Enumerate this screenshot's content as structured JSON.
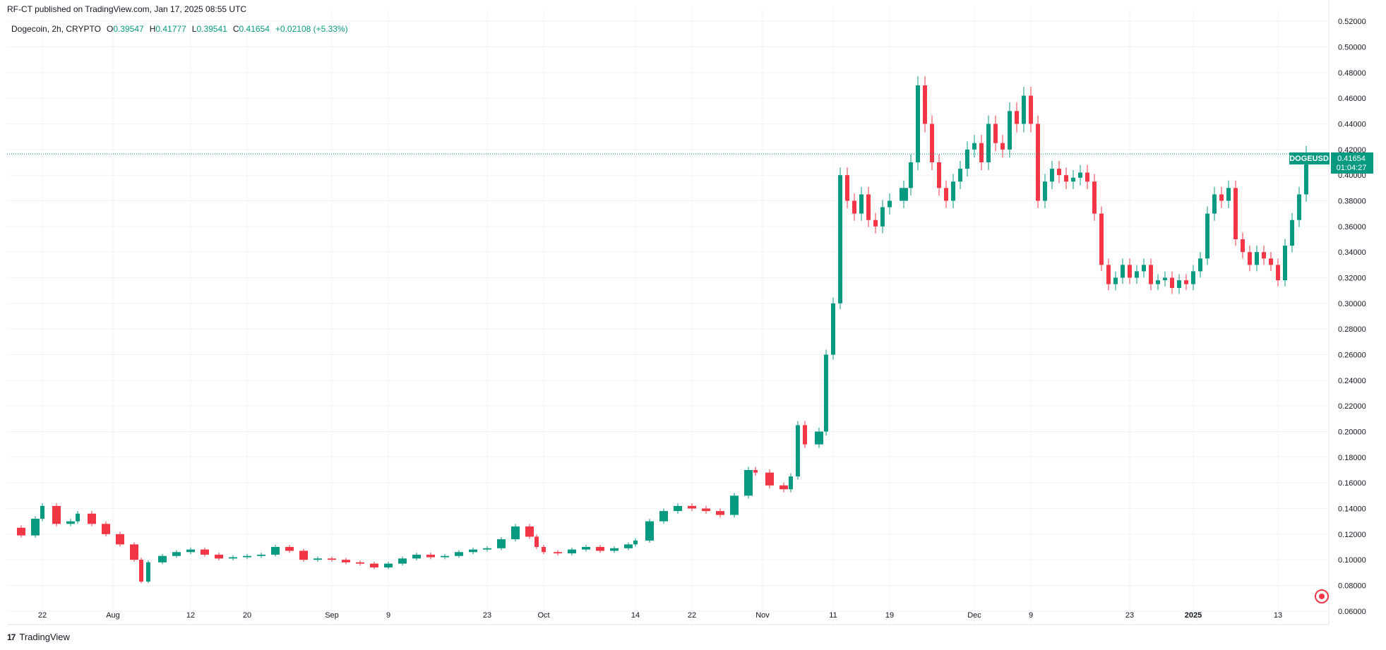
{
  "header": {
    "published_text": "RF-CT published on TradingView.com, Jan 17, 2025 08:55 UTC"
  },
  "legend": {
    "symbol": "Dogecoin, 2h, CRYPTO",
    "open_label": "O",
    "open": "0.39547",
    "high_label": "H",
    "high": "0.41777",
    "low_label": "L",
    "low": "0.39541",
    "close_label": "C",
    "close": "0.41654",
    "change": "+0.02108 (+5.33%)"
  },
  "price_tag": {
    "ticker": "DOGEUSD",
    "price": "0.41654",
    "countdown": "01:04:27"
  },
  "footer": {
    "brand": "TradingView",
    "logo": "17"
  },
  "colors": {
    "up": "#089981",
    "down": "#f23645",
    "grid": "#f0f3fa",
    "text": "#131722"
  },
  "chart_data": {
    "type": "line",
    "style": "candlestick",
    "ylim": [
      0.05,
      0.53
    ],
    "y_ticks": [
      0.06,
      0.08,
      0.1,
      0.12,
      0.14,
      0.16,
      0.18,
      0.2,
      0.22,
      0.24,
      0.26,
      0.28,
      0.3,
      0.32,
      0.34,
      0.36,
      0.38,
      0.4,
      0.42,
      0.44,
      0.46,
      0.48,
      0.5,
      0.52
    ],
    "y_tick_labels": [
      "0.06000",
      "0.08000",
      "0.10000",
      "0.12000",
      "0.14000",
      "0.16000",
      "0.18000",
      "0.20000",
      "0.22000",
      "0.24000",
      "0.26000",
      "0.28000",
      "0.30000",
      "0.32000",
      "0.34000",
      "0.36000",
      "0.38000",
      "0.40000",
      "0.42000",
      "0.44000",
      "0.46000",
      "0.48000",
      "0.50000",
      "0.52000"
    ],
    "xlim": [
      "2024-07-17",
      "2025-01-20"
    ],
    "x_ticks": [
      {
        "date": "2024-07-22",
        "label": "22"
      },
      {
        "date": "2024-08-01",
        "label": "Aug"
      },
      {
        "date": "2024-08-12",
        "label": "12"
      },
      {
        "date": "2024-08-20",
        "label": "20"
      },
      {
        "date": "2024-09-01",
        "label": "Sep"
      },
      {
        "date": "2024-09-09",
        "label": "9"
      },
      {
        "date": "2024-09-23",
        "label": "23"
      },
      {
        "date": "2024-10-01",
        "label": "Oct"
      },
      {
        "date": "2024-10-14",
        "label": "14"
      },
      {
        "date": "2024-10-22",
        "label": "22"
      },
      {
        "date": "2024-11-01",
        "label": "Nov"
      },
      {
        "date": "2024-11-11",
        "label": "11"
      },
      {
        "date": "2024-11-19",
        "label": "19"
      },
      {
        "date": "2024-12-01",
        "label": "Dec"
      },
      {
        "date": "2024-12-09",
        "label": "9"
      },
      {
        "date": "2024-12-23",
        "label": "23"
      },
      {
        "date": "2025-01-01",
        "label": "2025",
        "bold": true
      },
      {
        "date": "2025-01-13",
        "label": "13"
      }
    ],
    "current_price": 0.41654,
    "series": [
      {
        "values": [
          [
            "2024-07-17",
            0.125
          ],
          [
            "2024-07-19",
            0.119
          ],
          [
            "2024-07-21",
            0.132
          ],
          [
            "2024-07-22",
            0.142
          ],
          [
            "2024-07-24",
            0.128
          ],
          [
            "2024-07-26",
            0.13
          ],
          [
            "2024-07-27",
            0.136
          ],
          [
            "2024-07-29",
            0.128
          ],
          [
            "2024-07-31",
            0.12
          ],
          [
            "2024-08-02",
            0.112
          ],
          [
            "2024-08-04",
            0.1
          ],
          [
            "2024-08-05",
            0.083
          ],
          [
            "2024-08-06",
            0.098
          ],
          [
            "2024-08-08",
            0.103
          ],
          [
            "2024-08-10",
            0.106
          ],
          [
            "2024-08-12",
            0.108
          ],
          [
            "2024-08-14",
            0.104
          ],
          [
            "2024-08-16",
            0.101
          ],
          [
            "2024-08-18",
            0.102
          ],
          [
            "2024-08-20",
            0.103
          ],
          [
            "2024-08-22",
            0.104
          ],
          [
            "2024-08-24",
            0.11
          ],
          [
            "2024-08-26",
            0.107
          ],
          [
            "2024-08-28",
            0.1
          ],
          [
            "2024-08-30",
            0.101
          ],
          [
            "2024-09-01",
            0.1
          ],
          [
            "2024-09-03",
            0.098
          ],
          [
            "2024-09-05",
            0.097
          ],
          [
            "2024-09-07",
            0.094
          ],
          [
            "2024-09-09",
            0.097
          ],
          [
            "2024-09-11",
            0.101
          ],
          [
            "2024-09-13",
            0.104
          ],
          [
            "2024-09-15",
            0.102
          ],
          [
            "2024-09-17",
            0.103
          ],
          [
            "2024-09-19",
            0.106
          ],
          [
            "2024-09-21",
            0.108
          ],
          [
            "2024-09-23",
            0.109
          ],
          [
            "2024-09-25",
            0.116
          ],
          [
            "2024-09-27",
            0.126
          ],
          [
            "2024-09-29",
            0.118
          ],
          [
            "2024-09-30",
            0.11
          ],
          [
            "2024-10-01",
            0.106
          ],
          [
            "2024-10-03",
            0.105
          ],
          [
            "2024-10-05",
            0.108
          ],
          [
            "2024-10-07",
            0.11
          ],
          [
            "2024-10-09",
            0.107
          ],
          [
            "2024-10-11",
            0.109
          ],
          [
            "2024-10-13",
            0.112
          ],
          [
            "2024-10-14",
            0.115
          ],
          [
            "2024-10-16",
            0.13
          ],
          [
            "2024-10-18",
            0.138
          ],
          [
            "2024-10-20",
            0.142
          ],
          [
            "2024-10-22",
            0.14
          ],
          [
            "2024-10-24",
            0.138
          ],
          [
            "2024-10-26",
            0.135
          ],
          [
            "2024-10-28",
            0.15
          ],
          [
            "2024-10-30",
            0.17
          ],
          [
            "2024-10-31",
            0.168
          ],
          [
            "2024-11-02",
            0.158
          ],
          [
            "2024-11-04",
            0.155
          ],
          [
            "2024-11-05",
            0.165
          ],
          [
            "2024-11-06",
            0.205
          ],
          [
            "2024-11-07",
            0.19
          ],
          [
            "2024-11-09",
            0.2
          ],
          [
            "2024-11-10",
            0.26
          ],
          [
            "2024-11-11",
            0.3
          ],
          [
            "2024-11-12",
            0.4
          ],
          [
            "2024-11-13",
            0.38
          ],
          [
            "2024-11-14",
            0.37
          ],
          [
            "2024-11-15",
            0.385
          ],
          [
            "2024-11-16",
            0.365
          ],
          [
            "2024-11-17",
            0.36
          ],
          [
            "2024-11-18",
            0.375
          ],
          [
            "2024-11-19",
            0.38
          ],
          [
            "2024-11-21",
            0.39
          ],
          [
            "2024-11-22",
            0.41
          ],
          [
            "2024-11-23",
            0.47
          ],
          [
            "2024-11-24",
            0.44
          ],
          [
            "2024-11-25",
            0.41
          ],
          [
            "2024-11-26",
            0.39
          ],
          [
            "2024-11-27",
            0.38
          ],
          [
            "2024-11-28",
            0.395
          ],
          [
            "2024-11-29",
            0.405
          ],
          [
            "2024-11-30",
            0.42
          ],
          [
            "2024-12-01",
            0.425
          ],
          [
            "2024-12-02",
            0.41
          ],
          [
            "2024-12-03",
            0.44
          ],
          [
            "2024-12-04",
            0.425
          ],
          [
            "2024-12-05",
            0.42
          ],
          [
            "2024-12-06",
            0.45
          ],
          [
            "2024-12-07",
            0.44
          ],
          [
            "2024-12-08",
            0.462
          ],
          [
            "2024-12-09",
            0.44
          ],
          [
            "2024-12-10",
            0.38
          ],
          [
            "2024-12-11",
            0.395
          ],
          [
            "2024-12-12",
            0.405
          ],
          [
            "2024-12-13",
            0.4
          ],
          [
            "2024-12-14",
            0.395
          ],
          [
            "2024-12-15",
            0.398
          ],
          [
            "2024-12-16",
            0.402
          ],
          [
            "2024-12-17",
            0.395
          ],
          [
            "2024-12-18",
            0.37
          ],
          [
            "2024-12-19",
            0.33
          ],
          [
            "2024-12-20",
            0.315
          ],
          [
            "2024-12-21",
            0.32
          ],
          [
            "2024-12-22",
            0.33
          ],
          [
            "2024-12-23",
            0.32
          ],
          [
            "2024-12-24",
            0.325
          ],
          [
            "2024-12-25",
            0.33
          ],
          [
            "2024-12-26",
            0.315
          ],
          [
            "2024-12-27",
            0.318
          ],
          [
            "2024-12-28",
            0.32
          ],
          [
            "2024-12-29",
            0.312
          ],
          [
            "2024-12-30",
            0.318
          ],
          [
            "2024-12-31",
            0.315
          ],
          [
            "2025-01-01",
            0.325
          ],
          [
            "2025-01-02",
            0.335
          ],
          [
            "2025-01-03",
            0.37
          ],
          [
            "2025-01-04",
            0.385
          ],
          [
            "2025-01-05",
            0.38
          ],
          [
            "2025-01-06",
            0.39
          ],
          [
            "2025-01-07",
            0.35
          ],
          [
            "2025-01-08",
            0.34
          ],
          [
            "2025-01-09",
            0.33
          ],
          [
            "2025-01-10",
            0.34
          ],
          [
            "2025-01-11",
            0.335
          ],
          [
            "2025-01-12",
            0.33
          ],
          [
            "2025-01-13",
            0.318
          ],
          [
            "2025-01-14",
            0.345
          ],
          [
            "2025-01-15",
            0.365
          ],
          [
            "2025-01-16",
            0.385
          ],
          [
            "2025-01-17",
            0.4165
          ]
        ]
      }
    ]
  }
}
